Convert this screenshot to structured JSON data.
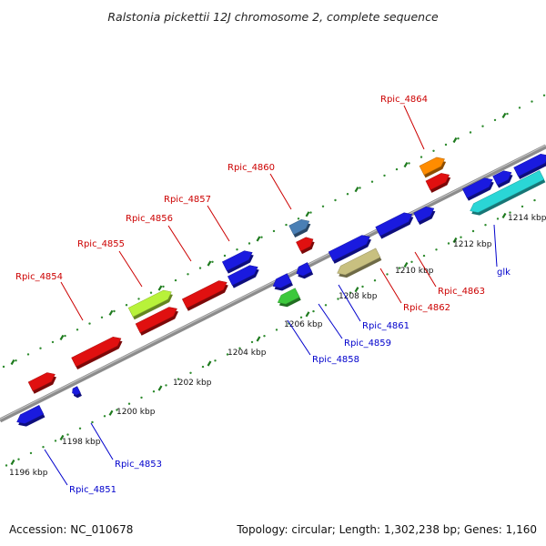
{
  "title": "Ralstonia pickettii 12J chromosome 2, complete sequence",
  "footer": {
    "accession": "Accession: NC_010678",
    "summary": "Topology: circular; Length: 1,302,238 bp; Genes: 1,160"
  },
  "colors": {
    "backbone": "#8c8c8c",
    "tick_dots": "#2e8b2e",
    "label_top": "#cc0000",
    "label_bottom": "#0000cc",
    "leader_top": "#cc0000",
    "leader_bottom": "#0000cc"
  },
  "scale": {
    "unit": "kbp",
    "tick_labels": [
      "1196 kbp",
      "1198 kbp",
      "1200 kbp",
      "1202 kbp",
      "1204 kbp",
      "1206 kbp",
      "1208 kbp",
      "1210 kbp",
      "1212 kbp",
      "1214 kbp"
    ]
  },
  "genes": [
    {
      "label": "Rpic_4851",
      "strand": "reverse",
      "color": "#1a1adf",
      "labeled": true
    },
    {
      "label": "Rpic_4853",
      "strand": "reverse",
      "color": "#1a1adf",
      "labeled": true
    },
    {
      "label": "",
      "strand": "forward",
      "color": "#e01010",
      "labeled": false
    },
    {
      "label": "Rpic_4854",
      "strand": "forward",
      "color": "#e01010",
      "labeled": true
    },
    {
      "label": "Rpic_4855",
      "strand": "forward",
      "color": "#b8f23a",
      "labeled": true
    },
    {
      "label": "Rpic_4856",
      "strand": "forward",
      "color": "#e01010",
      "labeled": true
    },
    {
      "label": "Rpic_4857",
      "strand": "forward",
      "color": "#e01010",
      "labeled": true
    },
    {
      "label": "",
      "strand": "forward",
      "color": "#1a1adf",
      "labeled": false
    },
    {
      "label": "Rpic_4858",
      "strand": "reverse",
      "color": "#3cc83c",
      "labeled": true
    },
    {
      "label": "",
      "strand": "reverse",
      "color": "#1a1adf",
      "labeled": false
    },
    {
      "label": "Rpic_4859",
      "strand": "reverse",
      "color": "#1a1adf",
      "labeled": true
    },
    {
      "label": "Rpic_4860",
      "strand": "forward",
      "color": "#4a7fb5",
      "labeled": true
    },
    {
      "label": "",
      "strand": "forward",
      "color": "#e01010",
      "labeled": false
    },
    {
      "label": "",
      "strand": "forward",
      "color": "#1a1adf",
      "labeled": false
    },
    {
      "label": "Rpic_4861",
      "strand": "reverse",
      "color": "#c8c080",
      "labeled": true
    },
    {
      "label": "Rpic_4862",
      "strand": "forward",
      "color": "#1a1adf",
      "labeled": true
    },
    {
      "label": "",
      "strand": "forward",
      "color": "#1a1adf",
      "labeled": false
    },
    {
      "label": "Rpic_4863",
      "strand": "forward",
      "color": "#1a1adf",
      "labeled": true
    },
    {
      "label": "Rpic_4864",
      "strand": "forward",
      "color": "#ff8c00",
      "labeled": true
    },
    {
      "label": "",
      "strand": "forward",
      "color": "#e01010",
      "labeled": false
    },
    {
      "label": "",
      "strand": "forward",
      "color": "#1a1adf",
      "labeled": false
    },
    {
      "label": "",
      "strand": "forward",
      "color": "#1a1adf",
      "labeled": false
    },
    {
      "label": "glk",
      "strand": "reverse",
      "color": "#2ad6d6",
      "labeled": true
    }
  ]
}
